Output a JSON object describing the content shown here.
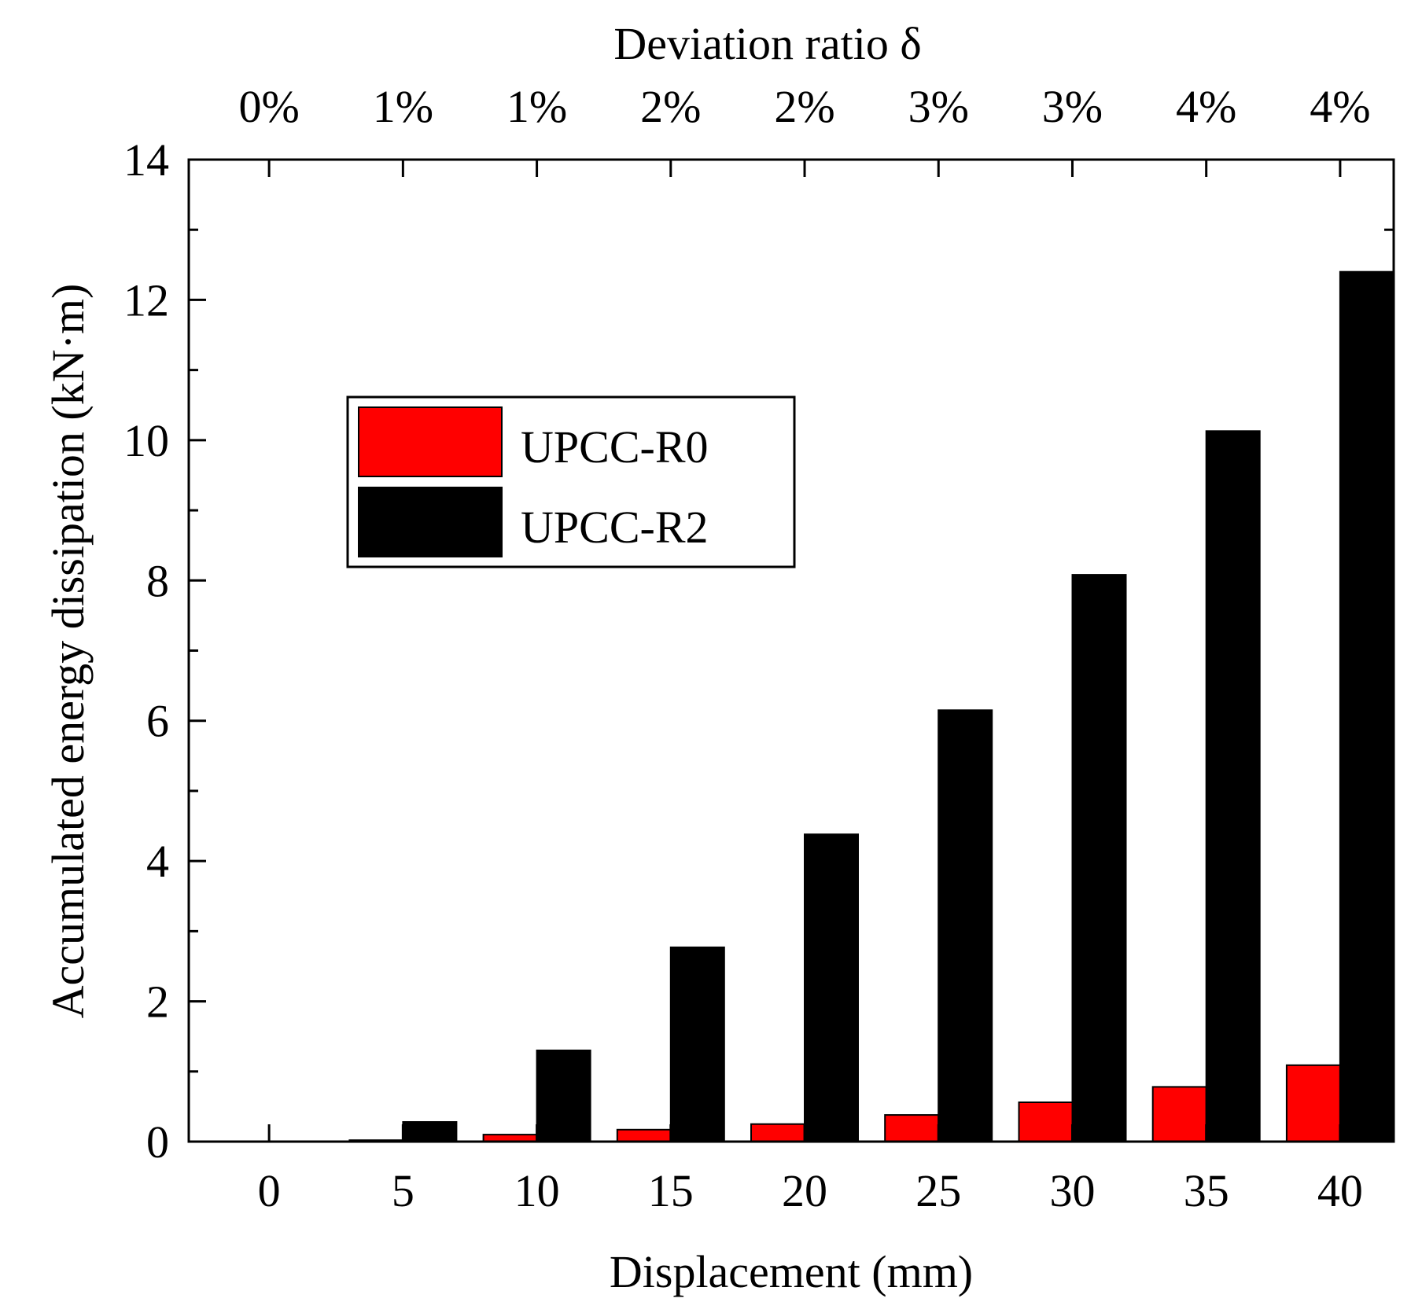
{
  "chart_data": {
    "type": "bar",
    "title": "",
    "xlabel": "Displacement (mm)",
    "ylabel": "Accumulated energy dissipation (kN·m)",
    "top_xlabel": "Deviation ratio δ",
    "categories": [
      "0",
      "5",
      "10",
      "15",
      "20",
      "25",
      "30",
      "35",
      "40"
    ],
    "top_tick_labels": [
      "0%",
      "1%",
      "1%",
      "2%",
      "2%",
      "3%",
      "3%",
      "4%",
      "4%"
    ],
    "x_values": [
      0,
      5,
      10,
      15,
      20,
      25,
      30,
      35,
      40
    ],
    "xlim": [
      -3,
      42
    ],
    "ylim": [
      0,
      14
    ],
    "y_ticks": [
      0,
      2,
      4,
      6,
      8,
      10,
      12,
      14
    ],
    "y_tick_labels": [
      "0",
      "2",
      "4",
      "6",
      "8",
      "10",
      "12",
      "14"
    ],
    "series": [
      {
        "name": "UPCC-R0",
        "color": "#ff0000",
        "values": [
          0,
          0.02,
          0.1,
          0.17,
          0.25,
          0.38,
          0.56,
          0.78,
          1.09
        ]
      },
      {
        "name": "UPCC-R2",
        "color": "#000000",
        "values": [
          0,
          0.28,
          1.3,
          2.77,
          4.38,
          6.15,
          8.08,
          10.13,
          12.4
        ]
      }
    ],
    "legend_position": "upper-left-center",
    "grid": false
  }
}
